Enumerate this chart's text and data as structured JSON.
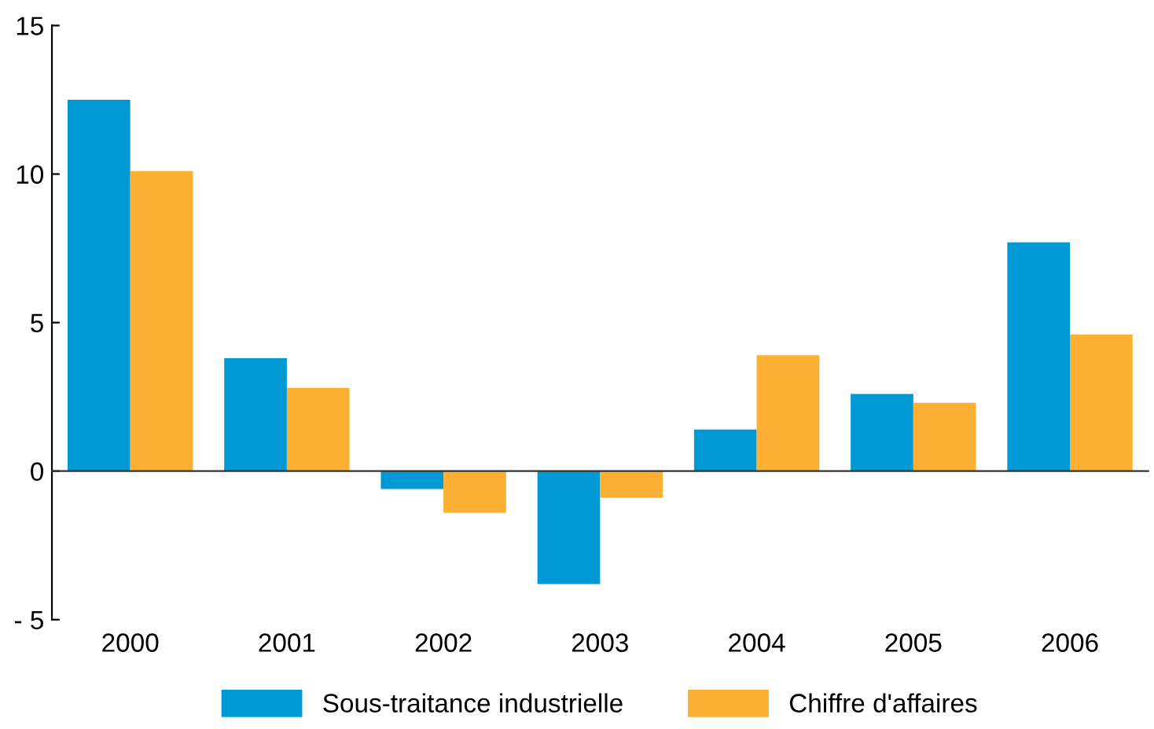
{
  "chart_data": {
    "type": "bar",
    "categories": [
      "2000",
      "2001",
      "2002",
      "2003",
      "2004",
      "2005",
      "2006"
    ],
    "series": [
      {
        "name": "Sous-traitance industrielle",
        "color": "#0099d6",
        "values": [
          12.5,
          3.8,
          -0.6,
          -3.8,
          1.4,
          2.6,
          7.7
        ]
      },
      {
        "name": "Chiffre d'affaires",
        "color": "#fbb034",
        "values": [
          10.1,
          2.8,
          -1.4,
          -0.9,
          3.9,
          2.3,
          4.6
        ]
      }
    ],
    "ylim": [
      -5,
      15
    ],
    "yticks": [
      {
        "value": -5,
        "label": "- 5"
      },
      0,
      5,
      10,
      15
    ],
    "legend": "bottom"
  }
}
